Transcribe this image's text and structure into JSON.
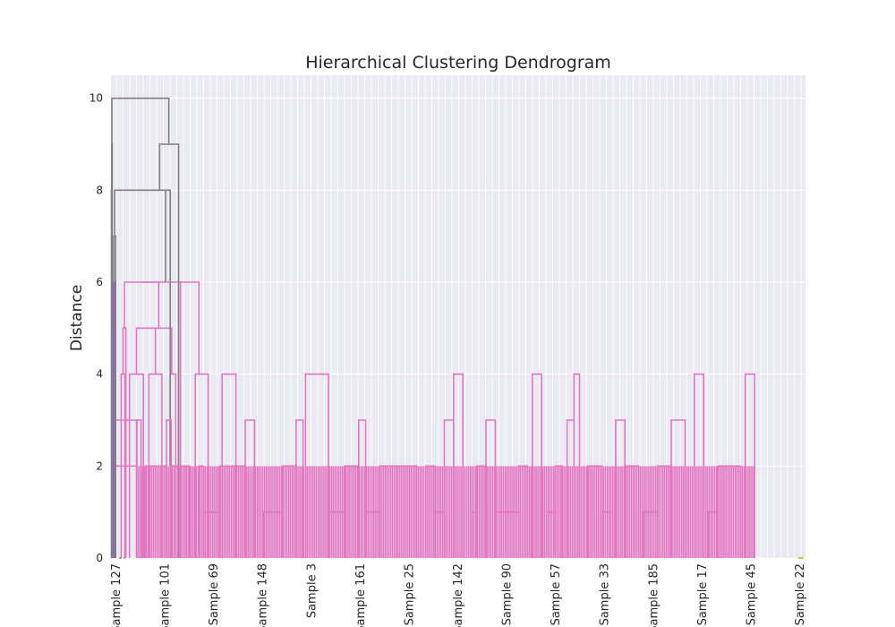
{
  "chart_data": {
    "type": "dendrogram",
    "title": "Hierarchical Clustering Dendrogram",
    "xlabel": "",
    "ylabel": "Distance",
    "ylim": [
      0,
      10.5
    ],
    "yticks": [
      0,
      2,
      4,
      6,
      8,
      10
    ],
    "grid": true,
    "colors": {
      "background": "#EAEAF2",
      "grid": "#ffffff",
      "above_threshold": "#808080",
      "cluster_purple": "#9467bd",
      "cluster_pink": "#e377c2",
      "cluster_olive": "#bcbd22",
      "cluster_green": "#2ca02c"
    },
    "leaf_labels": [
      "Sample 127",
      "Sample 101",
      "Sample 69",
      "Sample 148",
      "Sample 3",
      "Sample 161",
      "Sample 25",
      "Sample 142",
      "Sample 90",
      "Sample 57",
      "Sample 33",
      "Sample 185",
      "Sample 17",
      "Sample 45",
      "Sample 22"
    ],
    "links": [
      {
        "x": [
          4,
          4,
          56,
          56
        ],
        "y": [
          0,
          3,
          3,
          0
        ],
        "color": "pink"
      },
      {
        "x": [
          4,
          4,
          56,
          56
        ],
        "y": [
          2,
          2,
          2,
          2
        ],
        "color": "pink"
      },
      {
        "x": [
          1,
          1,
          2,
          2
        ],
        "y": [
          0,
          8,
          8,
          0
        ],
        "color": "gray"
      },
      {
        "x": [
          5,
          5,
          4.5,
          4.5
        ],
        "y": [
          0,
          5,
          5,
          0
        ],
        "color": "purple"
      },
      {
        "x": [
          4.75,
          4.75,
          7.5,
          7.5
        ],
        "y": [
          5,
          6,
          6,
          0
        ],
        "color": "purple"
      },
      {
        "x": [
          6,
          6,
          10,
          10
        ],
        "y": [
          6,
          7,
          7,
          0
        ],
        "color": "gray"
      },
      {
        "x": [
          22,
          22,
          30,
          30
        ],
        "y": [
          0,
          4,
          4,
          0
        ],
        "color": "pink"
      },
      {
        "x": [
          26,
          26,
          32,
          32
        ],
        "y": [
          4,
          5,
          5,
          0
        ],
        "color": "pink"
      },
      {
        "x": [
          40,
          40,
          70,
          70
        ],
        "y": [
          0,
          4,
          4,
          0
        ],
        "color": "pink"
      },
      {
        "x": [
          82,
          82,
          110,
          110
        ],
        "y": [
          0,
          4,
          4,
          0
        ],
        "color": "pink"
      },
      {
        "x": [
          128,
          128,
          140,
          140
        ],
        "y": [
          0,
          4,
          4,
          0
        ],
        "color": "pink"
      },
      {
        "x": [
          55,
          55,
          96,
          96
        ],
        "y": [
          4,
          5,
          5,
          4
        ],
        "color": "pink"
      },
      {
        "x": [
          75,
          75,
          131,
          131
        ],
        "y": [
          5,
          5,
          5,
          4
        ],
        "color": "pink"
      },
      {
        "x": [
          29,
          29,
          103,
          103
        ],
        "y": [
          5,
          6,
          6,
          5
        ],
        "color": "pink"
      },
      {
        "x": [
          66,
          66,
          150,
          150
        ],
        "y": [
          6,
          6,
          6,
          0
        ],
        "color": "pink"
      },
      {
        "x": [
          182,
          182,
          210,
          210
        ],
        "y": [
          0,
          4,
          4,
          0
        ],
        "color": "pink"
      },
      {
        "x": [
          240,
          240,
          270,
          270
        ],
        "y": [
          0,
          4,
          4,
          0
        ],
        "color": "pink"
      },
      {
        "x": [
          150,
          150,
          190,
          190
        ],
        "y": [
          6,
          6,
          6,
          4
        ],
        "color": "pink"
      },
      {
        "x": [
          8,
          8,
          118,
          118
        ],
        "y": [
          7,
          8,
          8,
          6
        ],
        "color": "gray"
      },
      {
        "x": [
          118,
          118,
          128,
          128
        ],
        "y": [
          8,
          8,
          8,
          0
        ],
        "color": "gray"
      },
      {
        "x": [
          1.5,
          1.5,
          2.5,
          2.5
        ],
        "y": [
          8,
          9,
          9,
          0
        ],
        "color": "gray"
      },
      {
        "x": [
          105,
          105,
          146,
          146
        ],
        "y": [
          8,
          9,
          9,
          0
        ],
        "color": "gray"
      },
      {
        "x": [
          2,
          2,
          125,
          125
        ],
        "y": [
          9,
          10,
          10,
          9
        ],
        "color": "gray"
      }
    ]
  }
}
